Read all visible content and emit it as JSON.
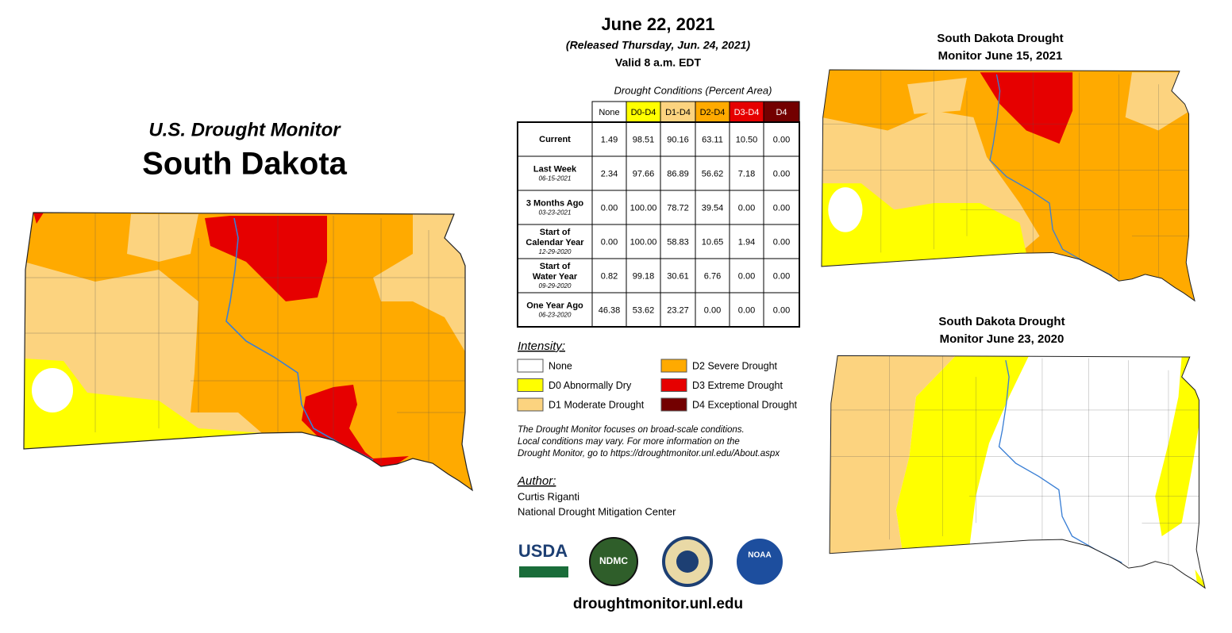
{
  "left": {
    "subtitle": "U.S. Drought Monitor",
    "title": "South Dakota"
  },
  "header": {
    "date": "June 22, 2021",
    "released": "(Released Thursday, Jun. 24, 2021)",
    "valid": "Valid 8 a.m. EDT"
  },
  "table": {
    "caption": "Drought Conditions (Percent Area)",
    "columns": [
      "None",
      "D0-D4",
      "D1-D4",
      "D2-D4",
      "D3-D4",
      "D4"
    ],
    "rows": [
      {
        "label": [
          "Current"
        ],
        "values": [
          "1.49",
          "98.51",
          "90.16",
          "63.11",
          "10.50",
          "0.00"
        ]
      },
      {
        "label": [
          "Last Week"
        ],
        "date": "06-15-2021",
        "values": [
          "2.34",
          "97.66",
          "86.89",
          "56.62",
          "7.18",
          "0.00"
        ]
      },
      {
        "label": [
          "3 Months Ago"
        ],
        "date": "03-23-2021",
        "values": [
          "0.00",
          "100.00",
          "78.72",
          "39.54",
          "0.00",
          "0.00"
        ]
      },
      {
        "label": [
          "Start of",
          "Calendar Year"
        ],
        "date": "12-29-2020",
        "values": [
          "0.00",
          "100.00",
          "58.83",
          "10.65",
          "1.94",
          "0.00"
        ]
      },
      {
        "label": [
          "Start of",
          "Water Year"
        ],
        "date": "09-29-2020",
        "values": [
          "0.82",
          "99.18",
          "30.61",
          "6.76",
          "0.00",
          "0.00"
        ]
      },
      {
        "label": [
          "One Year Ago"
        ],
        "date": "06-23-2020",
        "values": [
          "46.38",
          "53.62",
          "23.27",
          "0.00",
          "0.00",
          "0.00"
        ]
      }
    ]
  },
  "legend": {
    "title": "Intensity:",
    "items": [
      {
        "label": "None",
        "color": "#ffffff"
      },
      {
        "label": "D0 Abnormally Dry",
        "color": "#ffff00"
      },
      {
        "label": "D1 Moderate Drought",
        "color": "#fcd37f"
      },
      {
        "label": "D2 Severe Drought",
        "color": "#ffaa00"
      },
      {
        "label": "D3 Extreme Drought",
        "color": "#e60000"
      },
      {
        "label": "D4 Exceptional Drought",
        "color": "#730000"
      }
    ]
  },
  "note": [
    "The Drought Monitor focuses on broad-scale conditions.",
    "Local conditions may vary. For more information on the",
    "Drought Monitor, go to https://droughtmonitor.unl.edu/About.aspx"
  ],
  "author": {
    "title": "Author:",
    "lines": [
      "Curtis Riganti",
      "National Drought Mitigation Center"
    ]
  },
  "logos": [
    "USDA",
    "NDMC",
    "NOAA"
  ],
  "url": "droughtmonitor.unl.edu",
  "insets": [
    {
      "title": [
        "South Dakota Drought",
        "Monitor June 15, 2021"
      ]
    },
    {
      "title": [
        "South Dakota Drought",
        "Monitor June 23, 2020"
      ]
    }
  ]
}
